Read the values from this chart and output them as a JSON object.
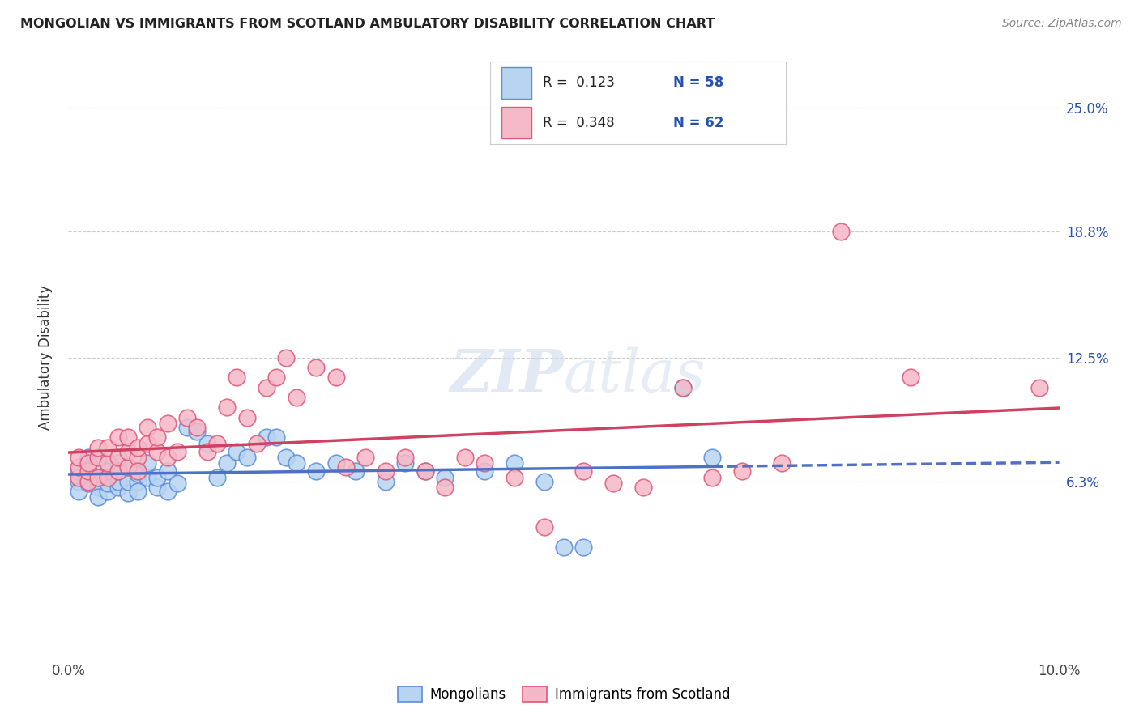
{
  "title": "MONGOLIAN VS IMMIGRANTS FROM SCOTLAND AMBULATORY DISABILITY CORRELATION CHART",
  "source": "Source: ZipAtlas.com",
  "ylabel": "Ambulatory Disability",
  "ytick_labels": [
    "6.3%",
    "12.5%",
    "18.8%",
    "25.0%"
  ],
  "ytick_values": [
    0.063,
    0.125,
    0.188,
    0.25
  ],
  "xlim": [
    0.0,
    0.1
  ],
  "ylim": [
    -0.025,
    0.275
  ],
  "legend_r_mongolians": "R = 0.123",
  "legend_n_mongolians": "N = 58",
  "legend_r_scotland": "R = 0.348",
  "legend_n_scotland": "N = 62",
  "color_mongolian_fill": "#b8d4f0",
  "color_mongolian_edge": "#5b8dd9",
  "color_scotland_fill": "#f5b8c8",
  "color_scotland_edge": "#e05878",
  "color_line_mongolian": "#5070c8",
  "color_line_scotland": "#d04060",
  "color_r_value": "#2850b0",
  "background_color": "#ffffff",
  "grid_color": "#cccccc",
  "mong_x": [
    0.001,
    0.001,
    0.001,
    0.002,
    0.002,
    0.002,
    0.002,
    0.003,
    0.003,
    0.003,
    0.003,
    0.003,
    0.004,
    0.004,
    0.004,
    0.004,
    0.005,
    0.005,
    0.005,
    0.005,
    0.006,
    0.006,
    0.006,
    0.007,
    0.007,
    0.007,
    0.008,
    0.008,
    0.009,
    0.009,
    0.01,
    0.01,
    0.011,
    0.012,
    0.013,
    0.014,
    0.015,
    0.016,
    0.017,
    0.018,
    0.02,
    0.021,
    0.022,
    0.023,
    0.025,
    0.027,
    0.029,
    0.032,
    0.034,
    0.036,
    0.038,
    0.042,
    0.045,
    0.048,
    0.05,
    0.052,
    0.062,
    0.065
  ],
  "mong_y": [
    0.063,
    0.068,
    0.058,
    0.065,
    0.062,
    0.07,
    0.075,
    0.063,
    0.06,
    0.065,
    0.055,
    0.072,
    0.058,
    0.065,
    0.062,
    0.068,
    0.072,
    0.06,
    0.063,
    0.068,
    0.057,
    0.063,
    0.07,
    0.063,
    0.058,
    0.067,
    0.065,
    0.072,
    0.06,
    0.065,
    0.058,
    0.068,
    0.062,
    0.09,
    0.088,
    0.082,
    0.065,
    0.072,
    0.078,
    0.075,
    0.085,
    0.085,
    0.075,
    0.072,
    0.068,
    0.072,
    0.068,
    0.063,
    0.072,
    0.068,
    0.065,
    0.068,
    0.072,
    0.063,
    0.03,
    0.03,
    0.11,
    0.075
  ],
  "scot_x": [
    0.001,
    0.001,
    0.001,
    0.002,
    0.002,
    0.002,
    0.003,
    0.003,
    0.003,
    0.004,
    0.004,
    0.004,
    0.005,
    0.005,
    0.005,
    0.006,
    0.006,
    0.006,
    0.007,
    0.007,
    0.007,
    0.008,
    0.008,
    0.009,
    0.009,
    0.01,
    0.01,
    0.011,
    0.012,
    0.013,
    0.014,
    0.015,
    0.016,
    0.017,
    0.018,
    0.019,
    0.02,
    0.021,
    0.022,
    0.023,
    0.025,
    0.027,
    0.028,
    0.03,
    0.032,
    0.034,
    0.036,
    0.038,
    0.04,
    0.042,
    0.045,
    0.048,
    0.052,
    0.055,
    0.058,
    0.062,
    0.065,
    0.068,
    0.072,
    0.078,
    0.085,
    0.098
  ],
  "scot_y": [
    0.065,
    0.07,
    0.075,
    0.063,
    0.068,
    0.072,
    0.075,
    0.065,
    0.08,
    0.065,
    0.072,
    0.08,
    0.085,
    0.068,
    0.075,
    0.07,
    0.078,
    0.085,
    0.075,
    0.068,
    0.08,
    0.082,
    0.09,
    0.078,
    0.085,
    0.092,
    0.075,
    0.078,
    0.095,
    0.09,
    0.078,
    0.082,
    0.1,
    0.115,
    0.095,
    0.082,
    0.11,
    0.115,
    0.125,
    0.105,
    0.12,
    0.115,
    0.07,
    0.075,
    0.068,
    0.075,
    0.068,
    0.06,
    0.075,
    0.072,
    0.065,
    0.04,
    0.068,
    0.062,
    0.06,
    0.11,
    0.065,
    0.068,
    0.072,
    0.188,
    0.115,
    0.11
  ]
}
